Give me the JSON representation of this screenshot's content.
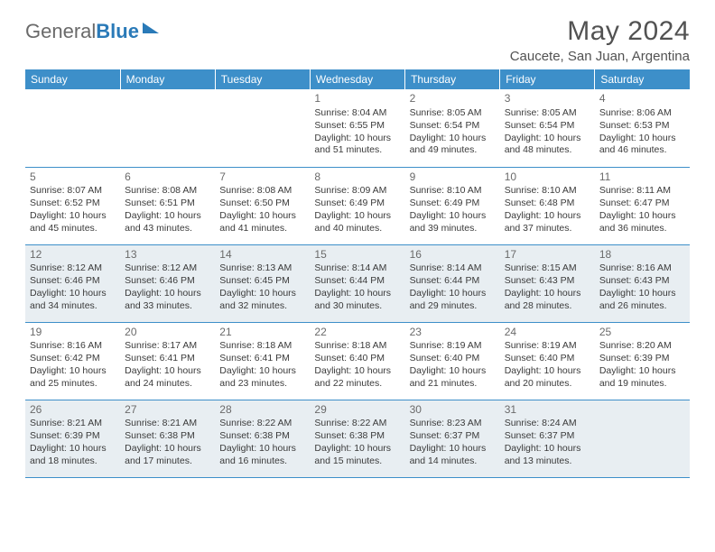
{
  "logo": {
    "part1": "General",
    "part2": "Blue"
  },
  "title": "May 2024",
  "location": "Caucete, San Juan, Argentina",
  "colors": {
    "header_bg": "#3d8fc9",
    "header_text": "#ffffff",
    "shade_bg": "#e8eef2",
    "body_text": "#3a3a3a",
    "title_text": "#525252",
    "logo_gray": "#6a6a6a",
    "logo_blue": "#2a7ab8",
    "rule": "#3d8fc9"
  },
  "weekdays": [
    "Sunday",
    "Monday",
    "Tuesday",
    "Wednesday",
    "Thursday",
    "Friday",
    "Saturday"
  ],
  "weeks": [
    [
      null,
      null,
      null,
      null,
      {
        "n": "1",
        "sr": "8:04 AM",
        "ss": "6:55 PM",
        "dl": "10 hours and 51 minutes."
      },
      {
        "n": "2",
        "sr": "8:05 AM",
        "ss": "6:54 PM",
        "dl": "10 hours and 49 minutes."
      },
      {
        "n": "3",
        "sr": "8:05 AM",
        "ss": "6:54 PM",
        "dl": "10 hours and 48 minutes."
      },
      {
        "n": "4",
        "sr": "8:06 AM",
        "ss": "6:53 PM",
        "dl": "10 hours and 46 minutes."
      }
    ],
    [
      {
        "n": "5",
        "sr": "8:07 AM",
        "ss": "6:52 PM",
        "dl": "10 hours and 45 minutes."
      },
      {
        "n": "6",
        "sr": "8:08 AM",
        "ss": "6:51 PM",
        "dl": "10 hours and 43 minutes."
      },
      {
        "n": "7",
        "sr": "8:08 AM",
        "ss": "6:50 PM",
        "dl": "10 hours and 41 minutes."
      },
      {
        "n": "8",
        "sr": "8:09 AM",
        "ss": "6:49 PM",
        "dl": "10 hours and 40 minutes."
      },
      {
        "n": "9",
        "sr": "8:10 AM",
        "ss": "6:49 PM",
        "dl": "10 hours and 39 minutes."
      },
      {
        "n": "10",
        "sr": "8:10 AM",
        "ss": "6:48 PM",
        "dl": "10 hours and 37 minutes."
      },
      {
        "n": "11",
        "sr": "8:11 AM",
        "ss": "6:47 PM",
        "dl": "10 hours and 36 minutes."
      }
    ],
    [
      {
        "n": "12",
        "sr": "8:12 AM",
        "ss": "6:46 PM",
        "dl": "10 hours and 34 minutes."
      },
      {
        "n": "13",
        "sr": "8:12 AM",
        "ss": "6:46 PM",
        "dl": "10 hours and 33 minutes."
      },
      {
        "n": "14",
        "sr": "8:13 AM",
        "ss": "6:45 PM",
        "dl": "10 hours and 32 minutes."
      },
      {
        "n": "15",
        "sr": "8:14 AM",
        "ss": "6:44 PM",
        "dl": "10 hours and 30 minutes."
      },
      {
        "n": "16",
        "sr": "8:14 AM",
        "ss": "6:44 PM",
        "dl": "10 hours and 29 minutes."
      },
      {
        "n": "17",
        "sr": "8:15 AM",
        "ss": "6:43 PM",
        "dl": "10 hours and 28 minutes."
      },
      {
        "n": "18",
        "sr": "8:16 AM",
        "ss": "6:43 PM",
        "dl": "10 hours and 26 minutes."
      }
    ],
    [
      {
        "n": "19",
        "sr": "8:16 AM",
        "ss": "6:42 PM",
        "dl": "10 hours and 25 minutes."
      },
      {
        "n": "20",
        "sr": "8:17 AM",
        "ss": "6:41 PM",
        "dl": "10 hours and 24 minutes."
      },
      {
        "n": "21",
        "sr": "8:18 AM",
        "ss": "6:41 PM",
        "dl": "10 hours and 23 minutes."
      },
      {
        "n": "22",
        "sr": "8:18 AM",
        "ss": "6:40 PM",
        "dl": "10 hours and 22 minutes."
      },
      {
        "n": "23",
        "sr": "8:19 AM",
        "ss": "6:40 PM",
        "dl": "10 hours and 21 minutes."
      },
      {
        "n": "24",
        "sr": "8:19 AM",
        "ss": "6:40 PM",
        "dl": "10 hours and 20 minutes."
      },
      {
        "n": "25",
        "sr": "8:20 AM",
        "ss": "6:39 PM",
        "dl": "10 hours and 19 minutes."
      }
    ],
    [
      {
        "n": "26",
        "sr": "8:21 AM",
        "ss": "6:39 PM",
        "dl": "10 hours and 18 minutes."
      },
      {
        "n": "27",
        "sr": "8:21 AM",
        "ss": "6:38 PM",
        "dl": "10 hours and 17 minutes."
      },
      {
        "n": "28",
        "sr": "8:22 AM",
        "ss": "6:38 PM",
        "dl": "10 hours and 16 minutes."
      },
      {
        "n": "29",
        "sr": "8:22 AM",
        "ss": "6:38 PM",
        "dl": "10 hours and 15 minutes."
      },
      {
        "n": "30",
        "sr": "8:23 AM",
        "ss": "6:37 PM",
        "dl": "10 hours and 14 minutes."
      },
      {
        "n": "31",
        "sr": "8:24 AM",
        "ss": "6:37 PM",
        "dl": "10 hours and 13 minutes."
      },
      null
    ]
  ],
  "labels": {
    "sunrise": "Sunrise:",
    "sunset": "Sunset:",
    "daylight": "Daylight:"
  },
  "shaded_rows": [
    2,
    4
  ]
}
